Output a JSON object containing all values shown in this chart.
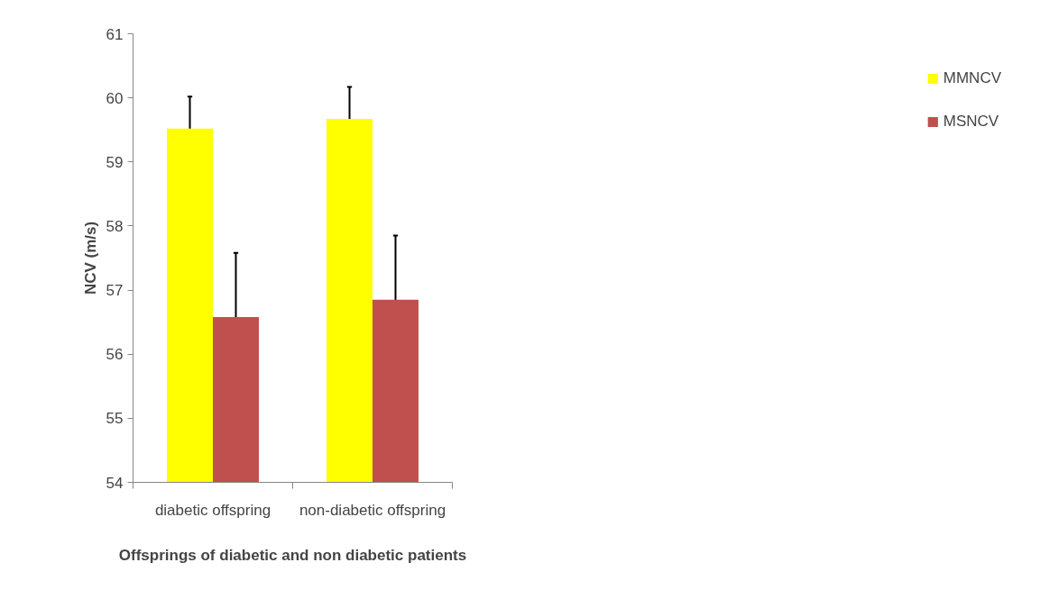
{
  "chart_data": {
    "type": "bar",
    "xlabel": "Offsprings of diabetic and non diabetic patients",
    "ylabel": "NCV (m/s)",
    "categories": [
      "diabetic offspring",
      "non-diabetic offspring"
    ],
    "series": [
      {
        "name": "MMNCV",
        "color": "#ffff00",
        "values": [
          59.52,
          59.67
        ],
        "errors": [
          0.5,
          0.5
        ]
      },
      {
        "name": "MSNCV",
        "color": "#c0504d",
        "values": [
          56.58,
          56.85
        ],
        "errors": [
          1.0,
          1.0
        ]
      }
    ],
    "ylim": [
      54,
      61
    ],
    "yticks": [
      54,
      55,
      56,
      57,
      58,
      59,
      60,
      61
    ],
    "grid": false,
    "legend": "right"
  }
}
